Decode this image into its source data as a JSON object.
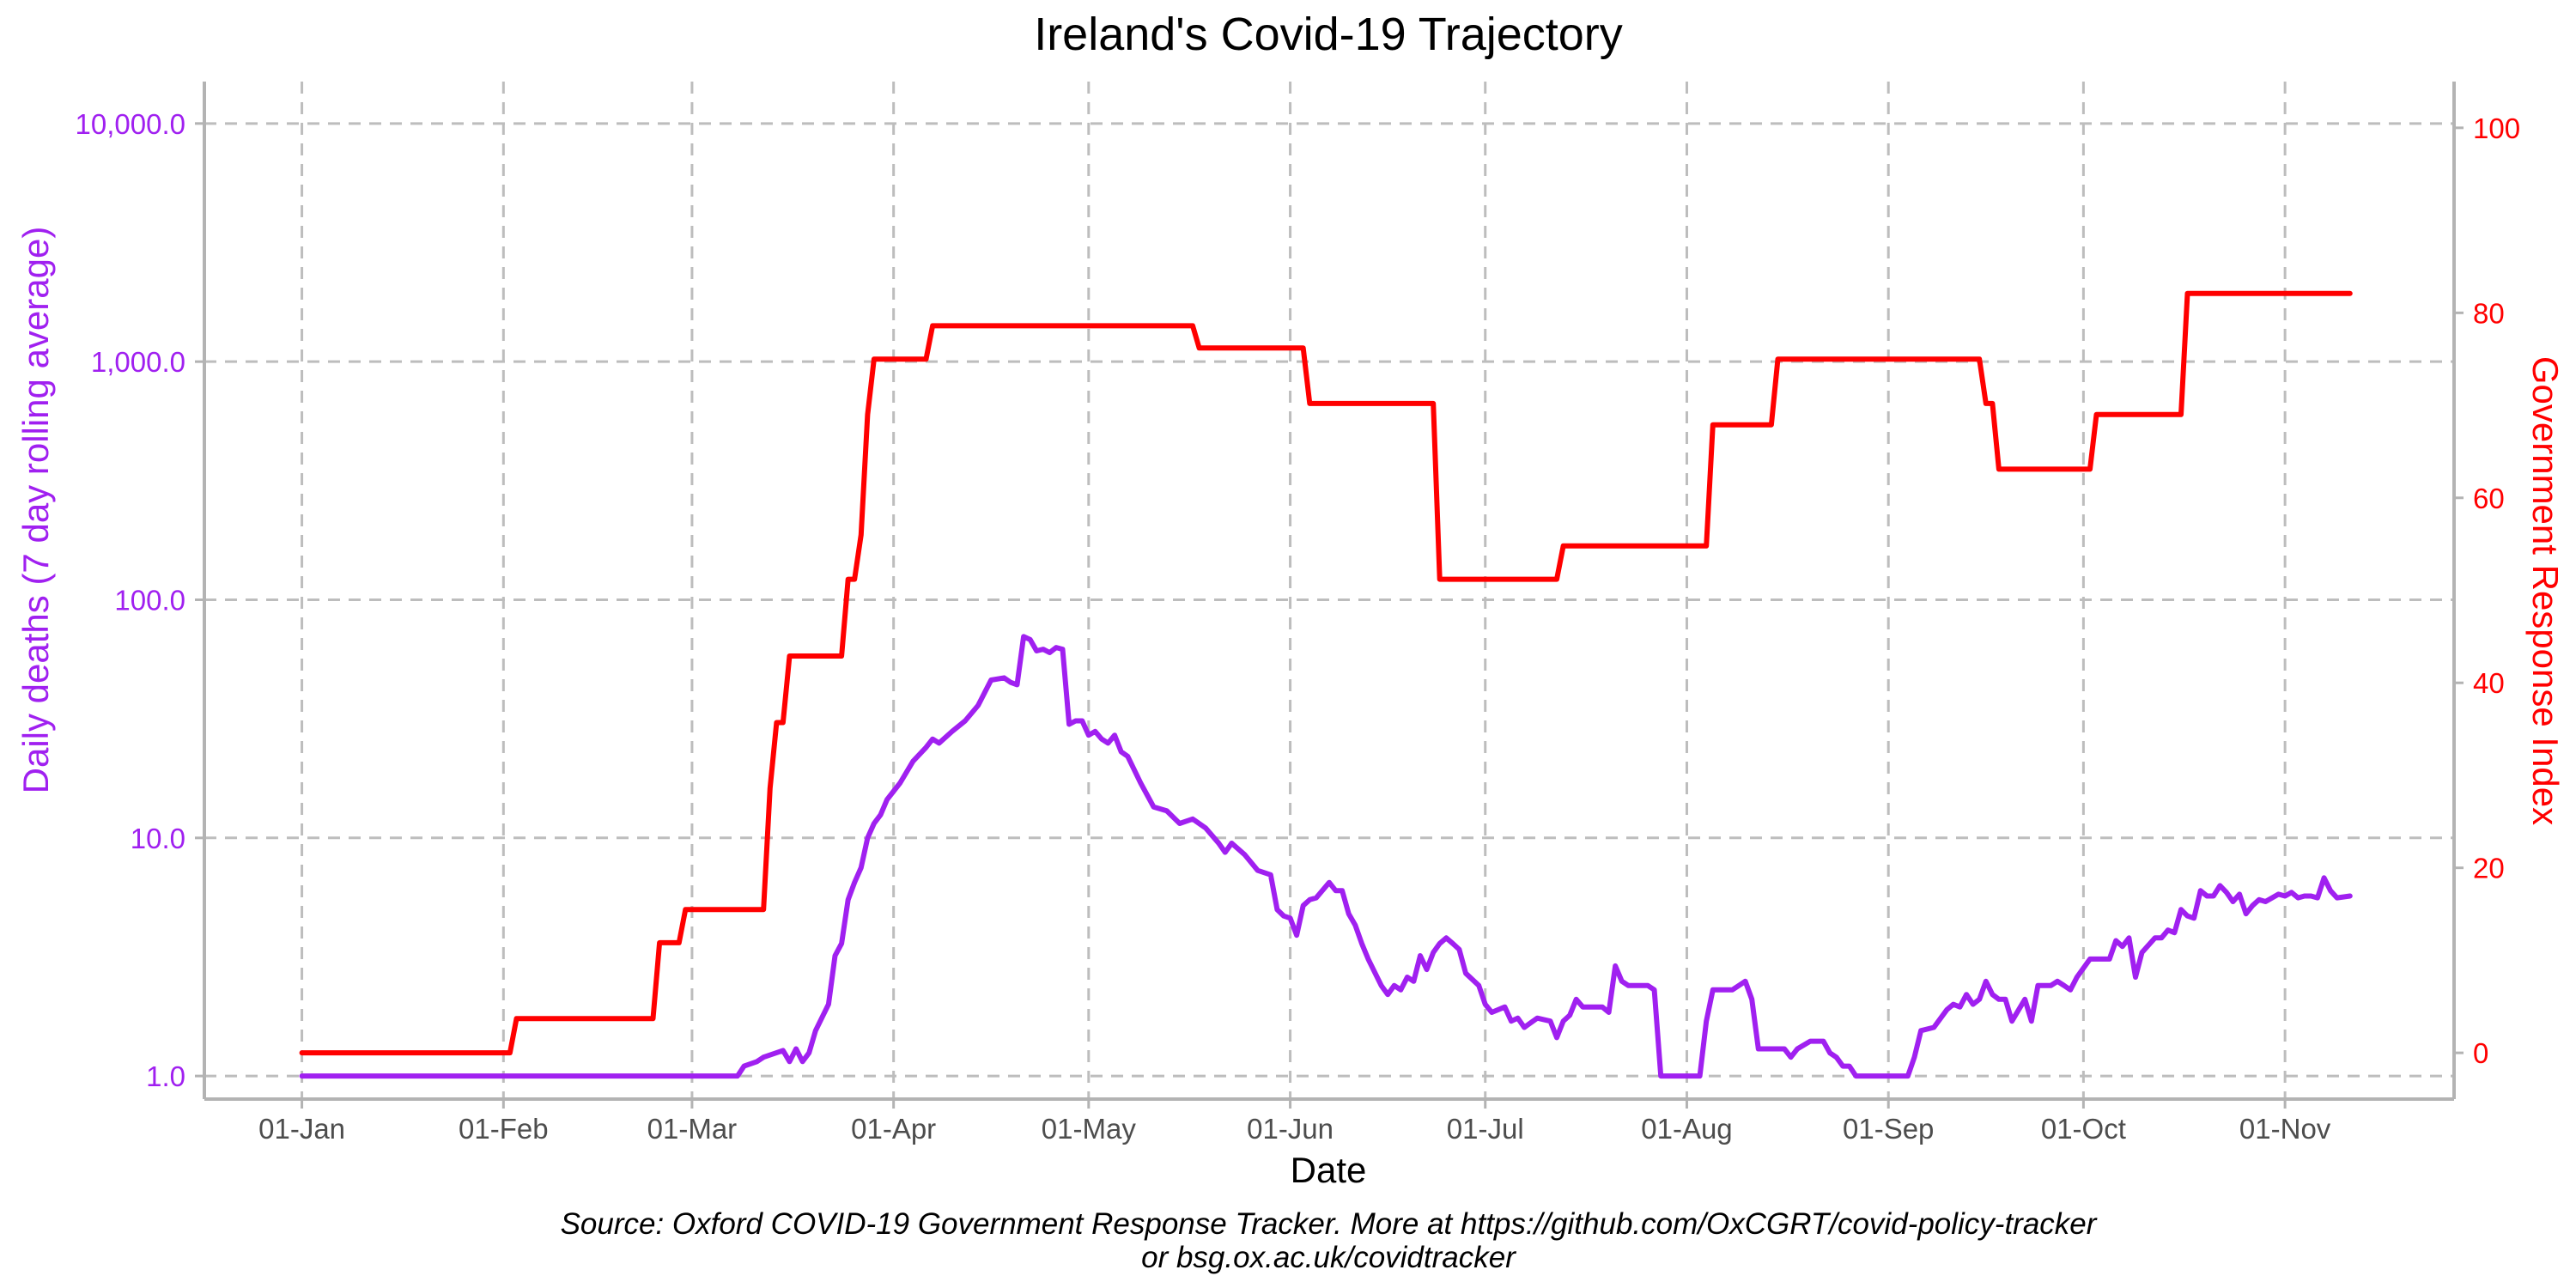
{
  "chart_data": {
    "type": "line",
    "title": "Ireland's Covid-19 Trajectory",
    "xlabel": "Date",
    "ylabel_left": "Daily deaths (7 day rolling average)",
    "ylabel_right": "Government Response Index",
    "caption": [
      "Source: Oxford COVID-19 Government Response Tracker. More at https://github.com/OxCGRT/covid-policy-tracker",
      "or bsg.ox.ac.uk/covidtracker"
    ],
    "x_tick_labels": [
      "01-Jan",
      "01-Feb",
      "01-Mar",
      "01-Apr",
      "01-May",
      "01-Jun",
      "01-Jul",
      "01-Aug",
      "01-Sep",
      "01-Oct",
      "01-Nov"
    ],
    "x_tick_dates": [
      "2020-01-01",
      "2020-02-01",
      "2020-03-01",
      "2020-04-01",
      "2020-05-01",
      "2020-06-01",
      "2020-07-01",
      "2020-08-01",
      "2020-09-01",
      "2020-10-01",
      "2020-11-01"
    ],
    "xlim": [
      "2019-12-17",
      "2020-11-27"
    ],
    "y_left": {
      "scale": "log10",
      "ticks": [
        1,
        10,
        100,
        1000,
        10000
      ],
      "tick_labels": [
        "1.0",
        "10.0",
        "100.0",
        "1,000.0",
        "10,000.0"
      ],
      "ylim": [
        0.8,
        15000
      ],
      "color": "#a020f0"
    },
    "y_right": {
      "scale": "linear",
      "ticks": [
        0,
        20,
        40,
        60,
        80,
        100
      ],
      "tick_labels": [
        "0",
        "20",
        "40",
        "60",
        "80",
        "100"
      ],
      "ylim": [
        -5,
        105
      ],
      "color": "#ff0000"
    },
    "grid": true,
    "series": [
      {
        "name": "Daily deaths (7 day rolling average)",
        "axis": "left",
        "color": "#a020f0",
        "points": [
          [
            "2020-01-01",
            1.0
          ],
          [
            "2020-03-08",
            1.0
          ],
          [
            "2020-03-09",
            1.1
          ],
          [
            "2020-03-11",
            1.15
          ],
          [
            "2020-03-12",
            1.2
          ],
          [
            "2020-03-15",
            1.28
          ],
          [
            "2020-03-16",
            1.15
          ],
          [
            "2020-03-17",
            1.3
          ],
          [
            "2020-03-18",
            1.15
          ],
          [
            "2020-03-19",
            1.25
          ],
          [
            "2020-03-20",
            1.55
          ],
          [
            "2020-03-22",
            2.0
          ],
          [
            "2020-03-23",
            3.2
          ],
          [
            "2020-03-24",
            3.6
          ],
          [
            "2020-03-25",
            5.5
          ],
          [
            "2020-03-26",
            6.5
          ],
          [
            "2020-03-27",
            7.5
          ],
          [
            "2020-03-28",
            10.0
          ],
          [
            "2020-03-29",
            11.5
          ],
          [
            "2020-03-30",
            12.5
          ],
          [
            "2020-03-31",
            14.5
          ],
          [
            "2020-04-02",
            17.0
          ],
          [
            "2020-04-04",
            21.0
          ],
          [
            "2020-04-06",
            24.0
          ],
          [
            "2020-04-07",
            26.0
          ],
          [
            "2020-04-08",
            25.0
          ],
          [
            "2020-04-10",
            28.0
          ],
          [
            "2020-04-12",
            31.0
          ],
          [
            "2020-04-14",
            36.0
          ],
          [
            "2020-04-16",
            46.0
          ],
          [
            "2020-04-18",
            47.0
          ],
          [
            "2020-04-19",
            45.0
          ],
          [
            "2020-04-20",
            44.0
          ],
          [
            "2020-04-21",
            70.0
          ],
          [
            "2020-04-22",
            68.0
          ],
          [
            "2020-04-23",
            61.0
          ],
          [
            "2020-04-24",
            62.0
          ],
          [
            "2020-04-25",
            60.0
          ],
          [
            "2020-04-26",
            63.0
          ],
          [
            "2020-04-27",
            62.0
          ],
          [
            "2020-04-28",
            30.0
          ],
          [
            "2020-04-29",
            31.0
          ],
          [
            "2020-04-30",
            31.0
          ],
          [
            "2020-05-01",
            27.0
          ],
          [
            "2020-05-02",
            28.0
          ],
          [
            "2020-05-03",
            26.0
          ],
          [
            "2020-05-04",
            25.0
          ],
          [
            "2020-05-05",
            27.0
          ],
          [
            "2020-05-06",
            23.0
          ],
          [
            "2020-05-07",
            22.0
          ],
          [
            "2020-05-09",
            17.0
          ],
          [
            "2020-05-11",
            13.5
          ],
          [
            "2020-05-13",
            13.0
          ],
          [
            "2020-05-15",
            11.5
          ],
          [
            "2020-05-17",
            12.0
          ],
          [
            "2020-05-19",
            11.0
          ],
          [
            "2020-05-21",
            9.5
          ],
          [
            "2020-05-22",
            8.7
          ],
          [
            "2020-05-23",
            9.5
          ],
          [
            "2020-05-25",
            8.5
          ],
          [
            "2020-05-27",
            7.3
          ],
          [
            "2020-05-29",
            7.0
          ],
          [
            "2020-05-30",
            5.0
          ],
          [
            "2020-05-31",
            4.7
          ],
          [
            "2020-06-01",
            4.6
          ],
          [
            "2020-06-02",
            3.9
          ],
          [
            "2020-06-03",
            5.2
          ],
          [
            "2020-06-04",
            5.5
          ],
          [
            "2020-06-05",
            5.6
          ],
          [
            "2020-06-07",
            6.5
          ],
          [
            "2020-06-08",
            6.0
          ],
          [
            "2020-06-09",
            6.0
          ],
          [
            "2020-06-10",
            4.8
          ],
          [
            "2020-06-11",
            4.3
          ],
          [
            "2020-06-12",
            3.6
          ],
          [
            "2020-06-13",
            3.1
          ],
          [
            "2020-06-15",
            2.4
          ],
          [
            "2020-06-16",
            2.2
          ],
          [
            "2020-06-17",
            2.4
          ],
          [
            "2020-06-18",
            2.3
          ],
          [
            "2020-06-19",
            2.6
          ],
          [
            "2020-06-20",
            2.5
          ],
          [
            "2020-06-21",
            3.2
          ],
          [
            "2020-06-22",
            2.8
          ],
          [
            "2020-06-23",
            3.3
          ],
          [
            "2020-06-24",
            3.6
          ],
          [
            "2020-06-25",
            3.8
          ],
          [
            "2020-06-26",
            3.6
          ],
          [
            "2020-06-27",
            3.4
          ],
          [
            "2020-06-28",
            2.7
          ],
          [
            "2020-06-30",
            2.4
          ],
          [
            "2020-07-01",
            2.0
          ],
          [
            "2020-07-02",
            1.85
          ],
          [
            "2020-07-04",
            1.95
          ],
          [
            "2020-07-05",
            1.7
          ],
          [
            "2020-07-06",
            1.75
          ],
          [
            "2020-07-07",
            1.6
          ],
          [
            "2020-07-09",
            1.75
          ],
          [
            "2020-07-11",
            1.7
          ],
          [
            "2020-07-12",
            1.45
          ],
          [
            "2020-07-13",
            1.7
          ],
          [
            "2020-07-14",
            1.8
          ],
          [
            "2020-07-15",
            2.1
          ],
          [
            "2020-07-16",
            1.95
          ],
          [
            "2020-07-19",
            1.95
          ],
          [
            "2020-07-20",
            1.85
          ],
          [
            "2020-07-21",
            2.9
          ],
          [
            "2020-07-22",
            2.5
          ],
          [
            "2020-07-23",
            2.4
          ],
          [
            "2020-07-26",
            2.4
          ],
          [
            "2020-07-27",
            2.3
          ],
          [
            "2020-07-28",
            1.0
          ],
          [
            "2020-08-03",
            1.0
          ],
          [
            "2020-08-04",
            1.7
          ],
          [
            "2020-08-05",
            2.3
          ],
          [
            "2020-08-08",
            2.3
          ],
          [
            "2020-08-10",
            2.5
          ],
          [
            "2020-08-11",
            2.1
          ],
          [
            "2020-08-12",
            1.3
          ],
          [
            "2020-08-16",
            1.3
          ],
          [
            "2020-08-17",
            1.2
          ],
          [
            "2020-08-18",
            1.3
          ],
          [
            "2020-08-20",
            1.4
          ],
          [
            "2020-08-22",
            1.4
          ],
          [
            "2020-08-23",
            1.25
          ],
          [
            "2020-08-24",
            1.2
          ],
          [
            "2020-08-25",
            1.1
          ],
          [
            "2020-08-26",
            1.1
          ],
          [
            "2020-08-27",
            1.0
          ],
          [
            "2020-09-04",
            1.0
          ],
          [
            "2020-09-05",
            1.2
          ],
          [
            "2020-09-06",
            1.55
          ],
          [
            "2020-09-08",
            1.6
          ],
          [
            "2020-09-10",
            1.9
          ],
          [
            "2020-09-11",
            2.0
          ],
          [
            "2020-09-12",
            1.95
          ],
          [
            "2020-09-13",
            2.2
          ],
          [
            "2020-09-14",
            2.0
          ],
          [
            "2020-09-15",
            2.1
          ],
          [
            "2020-09-16",
            2.5
          ],
          [
            "2020-09-17",
            2.2
          ],
          [
            "2020-09-18",
            2.1
          ],
          [
            "2020-09-19",
            2.1
          ],
          [
            "2020-09-20",
            1.7
          ],
          [
            "2020-09-22",
            2.1
          ],
          [
            "2020-09-23",
            1.7
          ],
          [
            "2020-09-24",
            2.4
          ],
          [
            "2020-09-26",
            2.4
          ],
          [
            "2020-09-27",
            2.5
          ],
          [
            "2020-09-28",
            2.4
          ],
          [
            "2020-09-29",
            2.3
          ],
          [
            "2020-09-30",
            2.6
          ],
          [
            "2020-10-02",
            3.1
          ],
          [
            "2020-10-05",
            3.1
          ],
          [
            "2020-10-06",
            3.7
          ],
          [
            "2020-10-07",
            3.5
          ],
          [
            "2020-10-08",
            3.8
          ],
          [
            "2020-10-09",
            2.6
          ],
          [
            "2020-10-10",
            3.3
          ],
          [
            "2020-10-12",
            3.8
          ],
          [
            "2020-10-13",
            3.8
          ],
          [
            "2020-10-14",
            4.1
          ],
          [
            "2020-10-15",
            4.0
          ],
          [
            "2020-10-16",
            5.0
          ],
          [
            "2020-10-17",
            4.7
          ],
          [
            "2020-10-18",
            4.6
          ],
          [
            "2020-10-19",
            6.0
          ],
          [
            "2020-10-20",
            5.7
          ],
          [
            "2020-10-21",
            5.7
          ],
          [
            "2020-10-22",
            6.3
          ],
          [
            "2020-10-23",
            5.9
          ],
          [
            "2020-10-24",
            5.4
          ],
          [
            "2020-10-25",
            5.8
          ],
          [
            "2020-10-26",
            4.8
          ],
          [
            "2020-10-27",
            5.2
          ],
          [
            "2020-10-28",
            5.5
          ],
          [
            "2020-10-29",
            5.4
          ],
          [
            "2020-10-31",
            5.8
          ],
          [
            "2020-11-01",
            5.7
          ],
          [
            "2020-11-02",
            5.9
          ],
          [
            "2020-11-03",
            5.6
          ],
          [
            "2020-11-04",
            5.7
          ],
          [
            "2020-11-05",
            5.7
          ],
          [
            "2020-11-06",
            5.6
          ],
          [
            "2020-11-07",
            6.8
          ],
          [
            "2020-11-08",
            6.0
          ],
          [
            "2020-11-09",
            5.6
          ],
          [
            "2020-11-11",
            5.7
          ]
        ]
      },
      {
        "name": "Government Response Index",
        "axis": "right",
        "color": "#ff0000",
        "points": [
          [
            "2020-01-01",
            0
          ],
          [
            "2020-02-02",
            0
          ],
          [
            "2020-02-03",
            3.7
          ],
          [
            "2020-02-24",
            3.7
          ],
          [
            "2020-02-25",
            11.9
          ],
          [
            "2020-02-28",
            11.9
          ],
          [
            "2020-02-29",
            15.5
          ],
          [
            "2020-03-12",
            15.5
          ],
          [
            "2020-03-13",
            28.6
          ],
          [
            "2020-03-14",
            35.7
          ],
          [
            "2020-03-15",
            35.7
          ],
          [
            "2020-03-16",
            42.9
          ],
          [
            "2020-03-24",
            42.9
          ],
          [
            "2020-03-25",
            51.2
          ],
          [
            "2020-03-26",
            51.2
          ],
          [
            "2020-03-27",
            56.0
          ],
          [
            "2020-03-28",
            69.0
          ],
          [
            "2020-03-29",
            75.0
          ],
          [
            "2020-04-06",
            75.0
          ],
          [
            "2020-04-07",
            78.6
          ],
          [
            "2020-05-17",
            78.6
          ],
          [
            "2020-05-18",
            76.2
          ],
          [
            "2020-06-03",
            76.2
          ],
          [
            "2020-06-04",
            70.2
          ],
          [
            "2020-06-23",
            70.2
          ],
          [
            "2020-06-24",
            51.2
          ],
          [
            "2020-07-12",
            51.2
          ],
          [
            "2020-07-13",
            54.8
          ],
          [
            "2020-08-04",
            54.8
          ],
          [
            "2020-08-05",
            67.9
          ],
          [
            "2020-08-14",
            67.9
          ],
          [
            "2020-08-15",
            75.0
          ],
          [
            "2020-09-15",
            75.0
          ],
          [
            "2020-09-16",
            70.2
          ],
          [
            "2020-09-17",
            70.2
          ],
          [
            "2020-09-18",
            63.1
          ],
          [
            "2020-10-02",
            63.1
          ],
          [
            "2020-10-03",
            69.0
          ],
          [
            "2020-10-16",
            69.0
          ],
          [
            "2020-10-17",
            82.1
          ],
          [
            "2020-11-11",
            82.1
          ]
        ]
      }
    ]
  }
}
